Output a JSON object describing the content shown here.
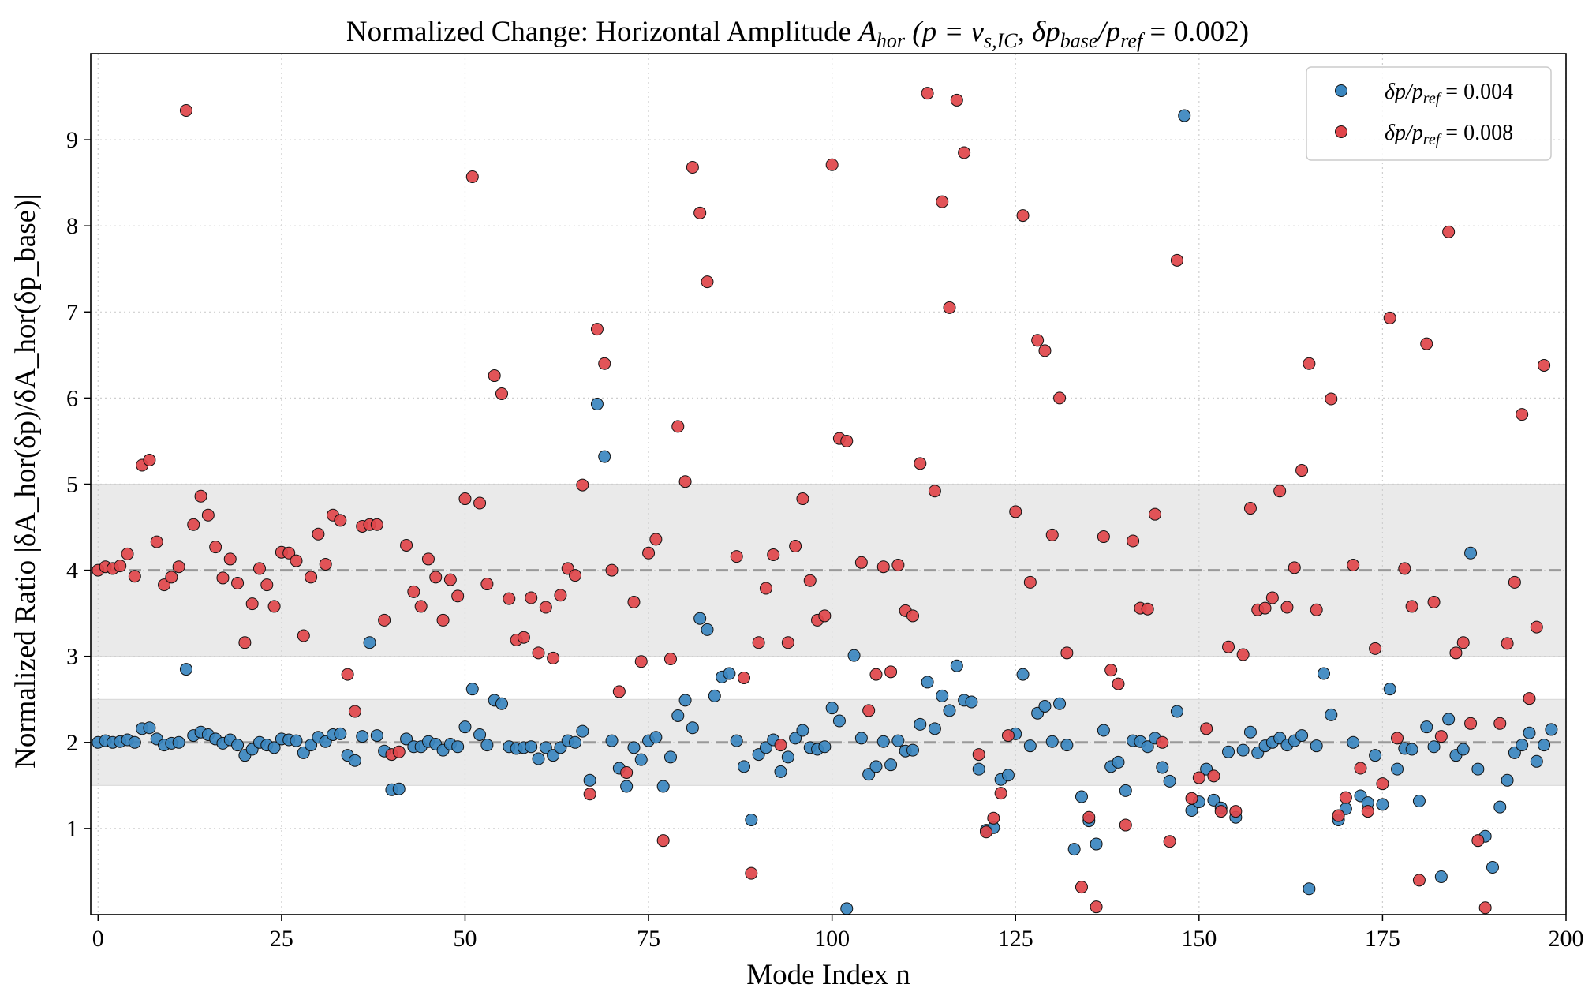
{
  "chart_data": {
    "type": "scatter",
    "title": {
      "prefix": "Normalized Change: Horizontal Amplitude ",
      "math": "A",
      "math_sub": "hor",
      "paren": " (p = v",
      "paren_sub": "s,IC",
      "rest": ", δp",
      "rest_sub": "base",
      "slash": "/p",
      "slash_sub": "ref",
      "tail": " = 0.002)"
    },
    "xlabel": "Mode Index n",
    "ylabel": "Normalized Ratio |δA_hor(δp)/δA_hor(δp_base)|",
    "xlim": [
      -1,
      200
    ],
    "ylim": [
      0,
      10
    ],
    "xticks": [
      0,
      25,
      50,
      75,
      100,
      125,
      150,
      175,
      200
    ],
    "yticks": [
      1,
      2,
      3,
      4,
      5,
      6,
      7,
      8,
      9
    ],
    "grid": true,
    "legend_position": "top-right",
    "reference_lines": [
      2,
      4
    ],
    "bands": [
      [
        1.5,
        2.5
      ],
      [
        3,
        5
      ]
    ],
    "series": [
      {
        "name": "δp/p_ref = 0.004",
        "legend_main": "δp/p",
        "legend_sub": "ref",
        "legend_tail": " = 0.004",
        "color": "#3a86bf",
        "values": [
          2.0,
          2.02,
          2.0,
          2.01,
          2.03,
          2.0,
          2.16,
          2.17,
          2.04,
          1.97,
          1.99,
          2.0,
          2.85,
          2.08,
          2.12,
          2.09,
          2.04,
          1.99,
          2.03,
          1.97,
          1.85,
          1.92,
          2.0,
          1.97,
          1.94,
          2.04,
          2.03,
          2.02,
          1.88,
          1.97,
          2.06,
          2.01,
          2.09,
          2.1,
          1.85,
          1.79,
          2.07,
          3.16,
          2.08,
          1.9,
          1.45,
          1.46,
          2.04,
          1.95,
          1.95,
          2.01,
          1.98,
          1.91,
          1.98,
          1.95,
          2.18,
          2.62,
          2.09,
          1.97,
          2.49,
          2.45,
          1.95,
          1.93,
          1.94,
          1.95,
          1.81,
          1.94,
          1.85,
          1.94,
          2.02,
          2.0,
          2.13,
          1.56,
          5.93,
          5.32,
          2.02,
          1.7,
          1.49,
          1.94,
          1.8,
          2.02,
          2.06,
          1.49,
          1.83,
          2.31,
          2.49,
          2.17,
          3.44,
          3.31,
          2.54,
          2.76,
          2.8,
          2.02,
          1.72,
          1.1,
          1.86,
          1.94,
          2.03,
          1.66,
          1.83,
          2.05,
          2.14,
          1.94,
          1.92,
          1.95,
          2.4,
          2.25,
          0.07,
          3.01,
          2.05,
          1.63,
          1.72,
          2.01,
          1.74,
          2.02,
          1.9,
          1.91,
          2.21,
          2.7,
          2.16,
          2.54,
          2.37,
          2.89,
          2.49,
          2.47,
          1.69,
          0.98,
          1.01,
          1.57,
          1.62,
          2.1,
          2.79,
          1.96,
          2.34,
          2.42,
          2.01,
          2.45,
          1.97,
          0.76,
          1.37,
          1.09,
          0.82,
          2.14,
          1.72,
          1.77,
          1.44,
          2.02,
          2.01,
          1.95,
          2.05,
          1.71,
          1.55,
          2.36,
          9.28,
          1.21,
          1.31,
          1.69,
          1.33,
          1.24,
          1.89,
          1.13,
          1.91,
          2.12,
          1.88,
          1.96,
          2.0,
          2.05,
          1.97,
          2.02,
          2.08,
          0.3,
          1.96,
          2.8,
          2.32,
          1.1,
          1.23,
          2.0,
          1.38,
          1.3,
          1.85,
          1.28,
          2.62,
          1.69,
          1.93,
          1.92,
          1.32,
          2.18,
          1.95,
          0.44,
          2.27,
          1.85,
          1.92,
          4.2,
          1.69,
          0.91,
          0.55,
          1.25,
          1.56,
          1.88,
          1.97,
          2.11,
          1.78,
          1.97,
          2.15
        ]
      },
      {
        "name": "δp/p_ref = 0.008",
        "legend_main": "δp/p",
        "legend_sub": "ref",
        "legend_tail": " = 0.008",
        "color": "#e0454a",
        "values": [
          4.0,
          4.04,
          4.02,
          4.05,
          4.19,
          3.93,
          5.22,
          5.28,
          4.33,
          3.83,
          3.92,
          4.04,
          9.34,
          4.53,
          4.86,
          4.64,
          4.27,
          3.91,
          4.13,
          3.85,
          3.16,
          3.61,
          4.02,
          3.83,
          3.58,
          4.21,
          4.2,
          4.11,
          3.24,
          3.92,
          4.42,
          4.07,
          4.64,
          4.58,
          2.79,
          2.36,
          4.51,
          4.53,
          4.53,
          3.42,
          1.86,
          1.89,
          4.29,
          3.75,
          3.58,
          4.13,
          3.92,
          3.42,
          3.89,
          3.7,
          4.83,
          8.57,
          4.78,
          3.84,
          6.26,
          6.05,
          3.67,
          3.19,
          3.22,
          3.68,
          3.04,
          3.57,
          2.98,
          3.71,
          4.02,
          3.94,
          4.99,
          1.4,
          6.8,
          6.4,
          4.0,
          2.59,
          1.65,
          3.63,
          2.94,
          4.2,
          4.36,
          0.86,
          2.97,
          5.67,
          5.03,
          8.68,
          8.15,
          7.35,
          null,
          null,
          null,
          4.16,
          2.75,
          0.48,
          3.16,
          3.79,
          4.18,
          1.97,
          3.16,
          4.28,
          4.83,
          3.88,
          3.42,
          3.47,
          8.71,
          5.53,
          5.5,
          null,
          4.09,
          2.37,
          2.79,
          4.04,
          2.82,
          4.06,
          3.53,
          3.47,
          5.24,
          9.54,
          4.92,
          8.28,
          7.05,
          9.46,
          8.85,
          null,
          1.86,
          0.96,
          1.12,
          1.41,
          2.08,
          4.68,
          8.12,
          3.86,
          6.67,
          6.55,
          4.41,
          6.0,
          3.04,
          null,
          0.32,
          1.13,
          0.09,
          4.39,
          2.84,
          2.68,
          1.04,
          4.34,
          3.56,
          3.55,
          4.65,
          2.0,
          0.85,
          7.6,
          null,
          1.35,
          1.59,
          2.16,
          1.61,
          1.2,
          3.11,
          1.2,
          3.02,
          4.72,
          3.54,
          3.56,
          3.68,
          4.92,
          3.57,
          4.03,
          5.16,
          6.4,
          3.54,
          null,
          5.99,
          1.15,
          1.36,
          4.06,
          1.7,
          1.2,
          3.09,
          1.52,
          6.93,
          2.05,
          4.02,
          3.58,
          0.4,
          6.63,
          3.63,
          2.07,
          7.93,
          3.04,
          3.16,
          2.22,
          0.86,
          0.08,
          null,
          2.22,
          3.15,
          3.86,
          5.81,
          2.51,
          3.34,
          6.38
        ]
      }
    ]
  }
}
